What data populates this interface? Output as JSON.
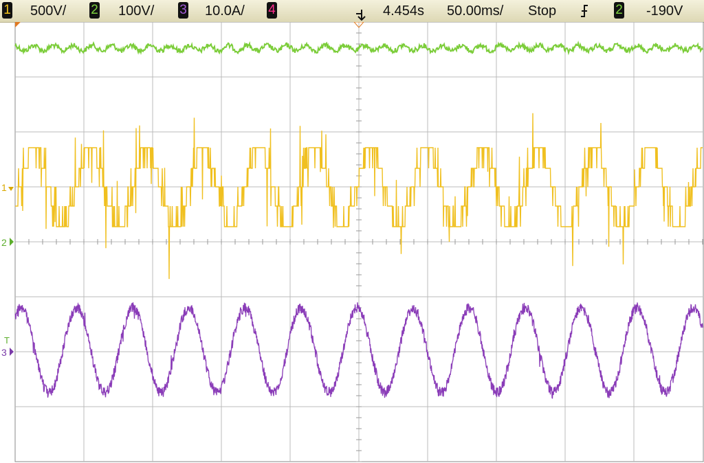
{
  "status_bar": {
    "ch1": {
      "label": "1",
      "scale": "500V/"
    },
    "ch2": {
      "label": "2",
      "scale": "100V/"
    },
    "ch3": {
      "label": "3",
      "scale": "10.0A/"
    },
    "ch4": {
      "label": "4"
    },
    "time_offset": "4.454s",
    "time_scale": "50.00ms/",
    "run_state": "Stop",
    "trigger_source": "2",
    "trigger_level": "-190V"
  },
  "markers": {
    "ch1": "1",
    "ch2": "2",
    "trigger": "T",
    "ch3": "3"
  }
}
